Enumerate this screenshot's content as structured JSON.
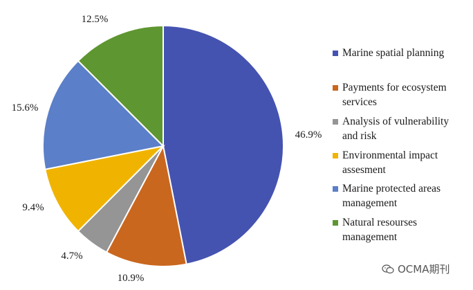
{
  "chart_data": {
    "type": "pie",
    "start_angle_deg": 0,
    "direction": "clockwise",
    "slices": [
      {
        "label": "Marine spatial planning",
        "value": 46.9,
        "display": "46.9%",
        "color": "#4553B0"
      },
      {
        "label": "Payments for ecosystem services",
        "value": 10.9,
        "display": "10.9%",
        "color": "#C9671F"
      },
      {
        "label": "Analysis of vulnerability and risk",
        "value": 4.7,
        "display": "4.7%",
        "color": "#959595"
      },
      {
        "label": "Environmental impact assesment",
        "value": 9.4,
        "display": "9.4%",
        "color": "#F0B400"
      },
      {
        "label": "Marine protected areas management",
        "value": 15.6,
        "display": "15.6%",
        "color": "#5B7FC8"
      },
      {
        "label": "Natural resourses management",
        "value": 12.5,
        "display": "12.5%",
        "color": "#5E9631"
      }
    ],
    "legend_position": "right"
  },
  "legend": {
    "lines": [
      [
        "Marine spatial planning"
      ],
      [
        "Payments for ecosystem",
        "services"
      ],
      [
        "Analysis of vulnerability",
        "and risk"
      ],
      [
        "Environmental impact",
        "assesment"
      ],
      [
        "Marine protected areas",
        "management"
      ],
      [
        "Natural resourses",
        "management"
      ]
    ]
  },
  "watermark": {
    "text": "OCMA期刊",
    "icon": "wechat-icon"
  }
}
